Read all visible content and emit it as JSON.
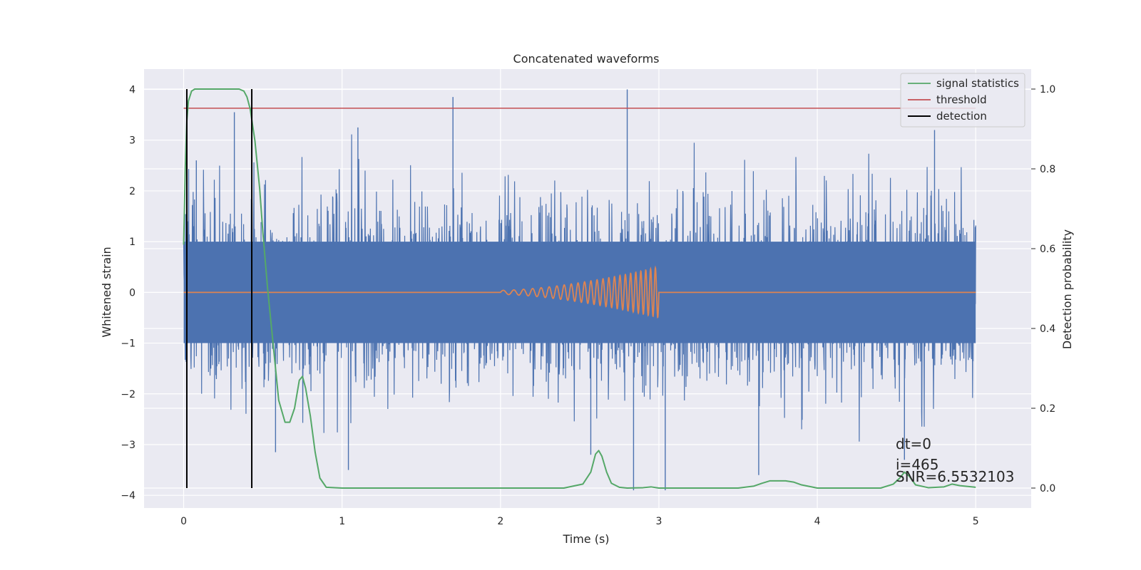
{
  "chart_data": {
    "type": "line",
    "title": "Concatenated waveforms",
    "xlabel": "Time (s)",
    "ylabel_left": "Whitened strain",
    "ylabel_right": "Detection probability",
    "xlim": [
      -0.25,
      5.35
    ],
    "ylim_left": [
      -4.25,
      4.4
    ],
    "ylim_right": [
      -0.05,
      1.05
    ],
    "grid": true,
    "legend_position": "top-right",
    "x_ticks": [
      "0",
      "1",
      "2",
      "3",
      "4",
      "5"
    ],
    "y_left_ticks": [
      "−4",
      "−3",
      "−2",
      "−1",
      "0",
      "1",
      "2",
      "3",
      "4"
    ],
    "y_right_ticks": [
      "0.0",
      "0.2",
      "0.4",
      "0.6",
      "0.8",
      "1.0"
    ],
    "colors": {
      "strain": "#4c72b0",
      "template": "#dd8452",
      "signal_statistics": "#55a868",
      "threshold": "#c44e52",
      "detection": "#000000",
      "plot_bg": "#eaeaf2",
      "grid": "#ffffff"
    },
    "series": [
      {
        "name": "signal statistics",
        "axis": "right",
        "x": [
          0,
          0.01,
          0.02,
          0.03,
          0.05,
          0.07,
          0.1,
          0.15,
          0.2,
          0.3,
          0.35,
          0.38,
          0.4,
          0.42,
          0.45,
          0.48,
          0.5,
          0.53,
          0.56,
          0.6,
          0.64,
          0.67,
          0.7,
          0.73,
          0.75,
          0.77,
          0.8,
          0.83,
          0.86,
          0.9,
          1.0,
          1.5,
          2.0,
          2.4,
          2.52,
          2.57,
          2.6,
          2.62,
          2.64,
          2.67,
          2.7,
          2.75,
          2.8,
          2.9,
          2.95,
          3.0,
          3.5,
          3.6,
          3.65,
          3.7,
          3.8,
          3.85,
          3.9,
          4.0,
          4.4,
          4.48,
          4.52,
          4.55,
          4.58,
          4.62,
          4.7,
          4.8,
          4.85,
          4.9,
          5.0
        ],
        "y": [
          0.61,
          0.8,
          0.92,
          0.97,
          0.995,
          1.0,
          1.0,
          1.0,
          1.0,
          1.0,
          1.0,
          0.995,
          0.98,
          0.95,
          0.87,
          0.75,
          0.64,
          0.5,
          0.38,
          0.22,
          0.165,
          0.165,
          0.2,
          0.27,
          0.28,
          0.25,
          0.18,
          0.09,
          0.025,
          0.002,
          0.0,
          0.0,
          0.0,
          0.0,
          0.01,
          0.04,
          0.085,
          0.094,
          0.08,
          0.04,
          0.012,
          0.002,
          0.0,
          0.001,
          0.003,
          0.0,
          0.0,
          0.005,
          0.012,
          0.018,
          0.018,
          0.015,
          0.008,
          0.0,
          0.0,
          0.01,
          0.025,
          0.04,
          0.03,
          0.008,
          0.001,
          0.003,
          0.01,
          0.006,
          0.002
        ]
      },
      {
        "name": "threshold",
        "axis": "right",
        "x": [
          0,
          5
        ],
        "y": [
          0.952,
          0.952
        ]
      },
      {
        "name": "detection",
        "axis": "right",
        "type": "vlines",
        "x": [
          0.02,
          0.43
        ],
        "y_range": [
          0.0,
          1.0
        ]
      },
      {
        "axis": "left",
        "kind": "strain_noise",
        "x_range": [
          0,
          5
        ],
        "core_range": [
          -1.0,
          1.0
        ],
        "max_abs": 4.0,
        "y_min": -3.9,
        "y_max": 4.0
      },
      {
        "axis": "left",
        "kind": "template",
        "flat_value": 0,
        "chirp_x_range": [
          2.0,
          3.0
        ],
        "chirp_amplitude_range": [
          0.04,
          0.5
        ],
        "chirp_frequency_range_hz": [
          14,
          34
        ]
      }
    ],
    "annotations": [
      "dt=0",
      "i=465",
      "SNR=6.5532103"
    ]
  }
}
